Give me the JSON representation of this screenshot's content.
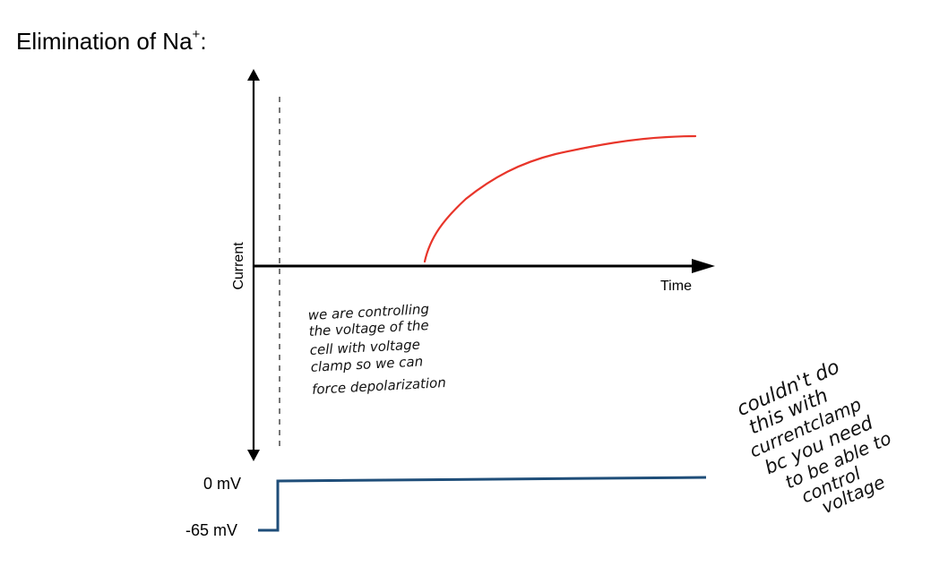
{
  "title": {
    "main": "Elimination of Na",
    "superscript": "+",
    "suffix": ":"
  },
  "axes": {
    "y_label": "Current",
    "x_label": "Time"
  },
  "voltage_levels": {
    "top": "0 mV",
    "bottom": "-65 mV"
  },
  "annotations": {
    "middle_note": [
      "we are controlling",
      "the voltage of the",
      "cell with voltage",
      "clamp so we can",
      "force depolarization"
    ],
    "side_note": [
      "couldn't do",
      "this with",
      "currentclamp",
      "bc you need",
      "to be able to",
      "control",
      "voltage"
    ]
  },
  "colors": {
    "current_trace": "#e8352a",
    "voltage_trace": "#1f4e79",
    "axes": "#000000",
    "stimulus_marker": "#555555"
  }
}
